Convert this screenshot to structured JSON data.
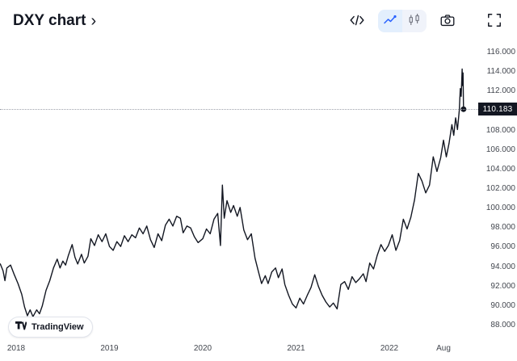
{
  "header": {
    "title": "DXY chart",
    "chevron": "›"
  },
  "toolbar": {
    "code_button": "embed-code",
    "style_line": "line-style",
    "style_candles": "candles-style",
    "snapshot": "camera-snapshot",
    "fullscreen": "fullscreen"
  },
  "colors": {
    "line": "#131722",
    "accent_blue": "#2962ff",
    "muted_icon": "#787b86",
    "badge_bg": "#131722",
    "badge_text": "#ffffff",
    "axis_text": "#42464e",
    "selected_segment_bg": "#e3effd"
  },
  "logo": {
    "text": "TradingView"
  },
  "chart_data": {
    "type": "line",
    "title": "DXY chart",
    "xlabel": "",
    "ylabel": "",
    "grid": false,
    "legend": "none",
    "ylim": [
      88,
      116
    ],
    "xlim": [
      2017.83,
      2022.92
    ],
    "current_price": {
      "label": "110.183",
      "value": 110.183
    },
    "y_ticks": [
      {
        "label": "116.000",
        "value": 116
      },
      {
        "label": "114.000",
        "value": 114
      },
      {
        "label": "112.000",
        "value": 112
      },
      {
        "label": "110.000",
        "value": 110
      },
      {
        "label": "108.000",
        "value": 108
      },
      {
        "label": "106.000",
        "value": 106
      },
      {
        "label": "104.000",
        "value": 104
      },
      {
        "label": "102.000",
        "value": 102
      },
      {
        "label": "100.000",
        "value": 100
      },
      {
        "label": "98.000",
        "value": 98
      },
      {
        "label": "96.000",
        "value": 96
      },
      {
        "label": "94.000",
        "value": 94
      },
      {
        "label": "92.000",
        "value": 92
      },
      {
        "label": "90.000",
        "value": 90
      },
      {
        "label": "88.000",
        "value": 88
      }
    ],
    "x_ticks": [
      {
        "label": "2018",
        "t": 2018
      },
      {
        "label": "2019",
        "t": 2019
      },
      {
        "label": "2020",
        "t": 2020
      },
      {
        "label": "2021",
        "t": 2021
      },
      {
        "label": "2022",
        "t": 2022
      },
      {
        "label": "Aug",
        "t": 2022.58
      }
    ],
    "series": [
      {
        "name": "DXY",
        "points": [
          [
            2017.83,
            94.3
          ],
          [
            2017.86,
            93.6
          ],
          [
            2017.88,
            92.6
          ],
          [
            2017.9,
            93.9
          ],
          [
            2017.94,
            94.2
          ],
          [
            2017.98,
            93.2
          ],
          [
            2018.02,
            92.3
          ],
          [
            2018.06,
            91.2
          ],
          [
            2018.09,
            89.9
          ],
          [
            2018.12,
            89.0
          ],
          [
            2018.15,
            89.6
          ],
          [
            2018.18,
            88.9
          ],
          [
            2018.22,
            89.6
          ],
          [
            2018.25,
            89.2
          ],
          [
            2018.28,
            90.0
          ],
          [
            2018.32,
            91.6
          ],
          [
            2018.36,
            92.6
          ],
          [
            2018.4,
            93.9
          ],
          [
            2018.44,
            94.8
          ],
          [
            2018.47,
            93.9
          ],
          [
            2018.5,
            94.6
          ],
          [
            2018.53,
            94.2
          ],
          [
            2018.56,
            95.2
          ],
          [
            2018.6,
            96.3
          ],
          [
            2018.63,
            95.0
          ],
          [
            2018.66,
            94.3
          ],
          [
            2018.7,
            95.3
          ],
          [
            2018.73,
            94.4
          ],
          [
            2018.77,
            95.1
          ],
          [
            2018.8,
            96.9
          ],
          [
            2018.84,
            96.2
          ],
          [
            2018.88,
            97.3
          ],
          [
            2018.92,
            96.6
          ],
          [
            2018.96,
            97.4
          ],
          [
            2019.0,
            96.1
          ],
          [
            2019.04,
            95.7
          ],
          [
            2019.08,
            96.6
          ],
          [
            2019.12,
            96.1
          ],
          [
            2019.16,
            97.2
          ],
          [
            2019.2,
            96.6
          ],
          [
            2019.24,
            97.3
          ],
          [
            2019.28,
            97.0
          ],
          [
            2019.32,
            98.0
          ],
          [
            2019.36,
            97.4
          ],
          [
            2019.4,
            98.2
          ],
          [
            2019.44,
            96.8
          ],
          [
            2019.48,
            96.0
          ],
          [
            2019.52,
            97.4
          ],
          [
            2019.56,
            96.7
          ],
          [
            2019.6,
            98.3
          ],
          [
            2019.64,
            98.9
          ],
          [
            2019.68,
            98.2
          ],
          [
            2019.72,
            99.2
          ],
          [
            2019.76,
            99.0
          ],
          [
            2019.79,
            97.5
          ],
          [
            2019.83,
            98.2
          ],
          [
            2019.87,
            98.0
          ],
          [
            2019.91,
            97.1
          ],
          [
            2019.95,
            96.5
          ],
          [
            2020.0,
            96.9
          ],
          [
            2020.04,
            97.9
          ],
          [
            2020.08,
            97.4
          ],
          [
            2020.12,
            98.9
          ],
          [
            2020.16,
            99.5
          ],
          [
            2020.19,
            96.2
          ],
          [
            2020.21,
            102.4
          ],
          [
            2020.23,
            99.0
          ],
          [
            2020.26,
            100.8
          ],
          [
            2020.3,
            99.6
          ],
          [
            2020.33,
            100.3
          ],
          [
            2020.37,
            99.2
          ],
          [
            2020.4,
            100.1
          ],
          [
            2020.44,
            97.8
          ],
          [
            2020.48,
            96.8
          ],
          [
            2020.52,
            97.4
          ],
          [
            2020.56,
            94.9
          ],
          [
            2020.6,
            93.4
          ],
          [
            2020.63,
            92.3
          ],
          [
            2020.67,
            93.1
          ],
          [
            2020.7,
            92.3
          ],
          [
            2020.74,
            93.5
          ],
          [
            2020.78,
            93.9
          ],
          [
            2020.81,
            92.9
          ],
          [
            2020.85,
            93.8
          ],
          [
            2020.88,
            92.2
          ],
          [
            2020.92,
            91.1
          ],
          [
            2020.96,
            90.2
          ],
          [
            2021.0,
            89.8
          ],
          [
            2021.04,
            90.8
          ],
          [
            2021.08,
            90.2
          ],
          [
            2021.12,
            91.1
          ],
          [
            2021.16,
            91.9
          ],
          [
            2021.2,
            93.2
          ],
          [
            2021.24,
            92.0
          ],
          [
            2021.28,
            91.1
          ],
          [
            2021.32,
            90.4
          ],
          [
            2021.36,
            89.9
          ],
          [
            2021.4,
            90.3
          ],
          [
            2021.44,
            89.7
          ],
          [
            2021.48,
            92.2
          ],
          [
            2021.52,
            92.5
          ],
          [
            2021.56,
            91.7
          ],
          [
            2021.6,
            93.0
          ],
          [
            2021.64,
            92.4
          ],
          [
            2021.68,
            92.8
          ],
          [
            2021.72,
            93.3
          ],
          [
            2021.75,
            92.5
          ],
          [
            2021.79,
            94.4
          ],
          [
            2021.83,
            93.8
          ],
          [
            2021.87,
            95.2
          ],
          [
            2021.91,
            96.3
          ],
          [
            2021.95,
            95.6
          ],
          [
            2021.99,
            96.2
          ],
          [
            2022.03,
            97.3
          ],
          [
            2022.07,
            95.7
          ],
          [
            2022.11,
            96.7
          ],
          [
            2022.15,
            98.9
          ],
          [
            2022.19,
            97.9
          ],
          [
            2022.23,
            99.1
          ],
          [
            2022.27,
            100.9
          ],
          [
            2022.31,
            103.6
          ],
          [
            2022.35,
            102.8
          ],
          [
            2022.39,
            101.6
          ],
          [
            2022.43,
            102.4
          ],
          [
            2022.47,
            105.3
          ],
          [
            2022.51,
            103.8
          ],
          [
            2022.55,
            105.2
          ],
          [
            2022.58,
            107.0
          ],
          [
            2022.61,
            105.3
          ],
          [
            2022.64,
            106.7
          ],
          [
            2022.67,
            108.6
          ],
          [
            2022.69,
            107.5
          ],
          [
            2022.71,
            109.3
          ],
          [
            2022.73,
            108.1
          ],
          [
            2022.75,
            110.1
          ],
          [
            2022.76,
            112.3
          ],
          [
            2022.77,
            111.5
          ],
          [
            2022.78,
            114.3
          ],
          [
            2022.785,
            112.6
          ],
          [
            2022.79,
            113.9
          ],
          [
            2022.795,
            110.183
          ]
        ]
      }
    ]
  }
}
